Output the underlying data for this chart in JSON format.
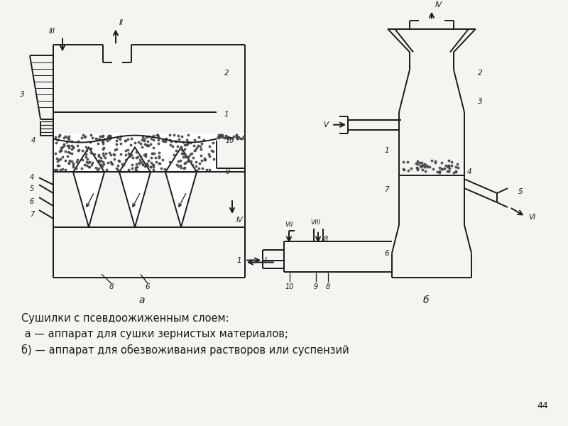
{
  "caption_line1": "Сушилки с псевдоожиженным слоем:",
  "caption_line2": " а — аппарат для сушки зернистых материалов;",
  "caption_line3": "б) — аппарат для обезвоживания растворов или суспензий",
  "page_number": "44",
  "bg_color": "#f5f4f1",
  "line_color": "#1a1a1a",
  "label_a": "а",
  "label_b": "б"
}
